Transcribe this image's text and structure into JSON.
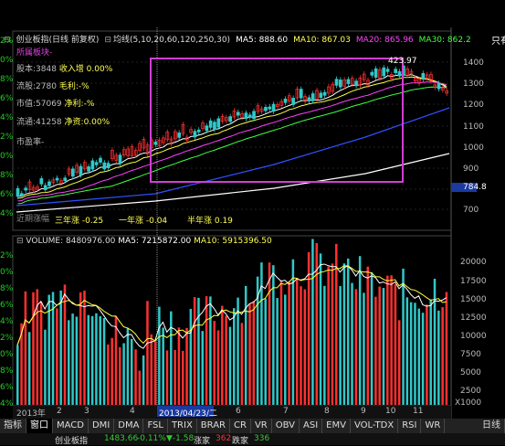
{
  "header": {
    "title": "创业板指(日线 前复权)",
    "ma_label": "均线(5,10,20,60,120,250,30)",
    "ma5": "MA5: 888.60",
    "ma10": "MA10: 867.03",
    "ma20": "MA20: 865.96",
    "ma30": "MA30: 862.2",
    "right_label": "只有"
  },
  "info_panel": {
    "sector": "所属板块-",
    "share_k": "股本:3848",
    "share_v": "收入增 0.00%",
    "float_k": "流股:2780",
    "float_v": "毛利:-%",
    "mktcap_k": "市值:57069",
    "mktcap_v": "净利:-%",
    "floatcap_k": "流通:41258",
    "floatcap_v": "净资:0.00%",
    "pe": "市盈率-"
  },
  "price_panel": {
    "peak_label": "423.97",
    "price_ticks": [
      "1400",
      "1300",
      "1200",
      "1100",
      "1000",
      "900",
      "800",
      "700"
    ],
    "last_price": "784.8",
    "bottom_stats": {
      "label1": "近期涨幅",
      "three_year": "三年涨 -0.25",
      "one_year": "一年涨 -0.04",
      "half_year": "半年涨 0.19"
    },
    "left_pct": [
      "2%",
      "0%",
      "8%",
      "6%",
      "4%",
      "2%",
      "0%",
      "8%",
      "6%",
      "4%",
      "2%"
    ]
  },
  "volume_panel": {
    "label": "VOLUME: 8480976.00",
    "ma5": "MA5: 7215872.00",
    "ma10": "MA10: 5915396.50",
    "ticks": [
      "20000",
      "17500",
      "15000",
      "12500",
      "10000",
      "7500",
      "5000",
      "2500"
    ],
    "multiplier": "X1000",
    "left_pct": [
      "2%",
      "0%",
      "8%",
      "6%",
      "4%",
      "2%",
      "0%",
      "8%",
      "6%",
      "4%"
    ]
  },
  "time_axis": {
    "year": "2013年",
    "months": [
      "2",
      "3",
      "4",
      "5",
      "6",
      "7",
      "8",
      "9",
      "10",
      "11"
    ],
    "cursor_date": "2013/04/23/二"
  },
  "tabs": [
    "指标",
    "窗口",
    "MACD",
    "DMI",
    "DMA",
    "FSL",
    "TRIX",
    "BRAR",
    "CR",
    "VR",
    "OBV",
    "ASI",
    "EMV",
    "VOL-TDX",
    "RSI",
    "WR"
  ],
  "active_tab": "窗口",
  "right_tab": "日线",
  "status": {
    "name": "创业板指",
    "price": "1483.66",
    "change_pct": "-0.11%",
    "change": "▼-1.58",
    "up_label": "涨家",
    "up_count": "362",
    "down_label": "跌家",
    "down_count": "336"
  },
  "colors": {
    "up": "#ff3030",
    "down": "#30c8c8",
    "highlight_box": "#d040d0",
    "ma5": "#ffffff",
    "ma10": "#ffff40",
    "ma20": "#ff40ff",
    "ma30": "#40ff40",
    "long_ma": "#3050ff"
  }
}
